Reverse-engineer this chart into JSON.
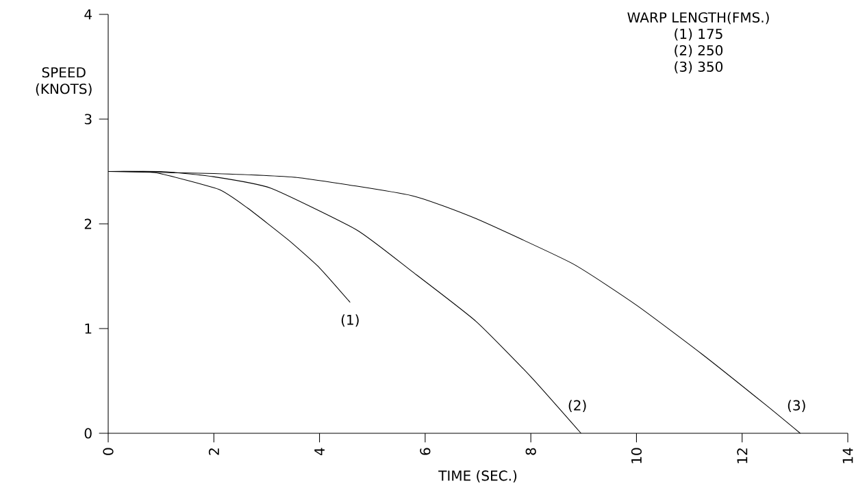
{
  "chart_data": {
    "type": "line",
    "xlabel": "TIME (SEC.)",
    "ylabel": "SPEED (KNOTS)",
    "legend_title": "WARP LENGTH(FMS.)",
    "annotations": [
      "(1) 175",
      "(2) 250",
      "(3) 350"
    ],
    "xlim": [
      0,
      14
    ],
    "xticks": [
      0,
      2,
      4,
      6,
      8,
      10,
      12,
      14
    ],
    "ylim": [
      0,
      4
    ],
    "yticks": [
      0,
      1,
      2,
      3,
      4
    ],
    "grid": false,
    "legend": false,
    "marker": "none",
    "line_style": "solid",
    "series": [
      {
        "name": "(1)",
        "color": "#000000",
        "x": [
          0,
          0.88,
          2.09,
          2.64,
          3.4,
          4.0,
          4.58
        ],
        "values": [
          2.5,
          2.49,
          2.33,
          2.15,
          1.85,
          1.58,
          1.25
        ]
      },
      {
        "name": "(2)",
        "color": "#000000",
        "x": [
          0,
          1.0,
          1.99,
          3.08,
          4.71,
          5.74,
          6.96,
          8.0,
          8.95
        ],
        "values": [
          2.5,
          2.5,
          2.45,
          2.34,
          1.94,
          1.55,
          1.07,
          0.54,
          0
        ]
      },
      {
        "name": "(3)",
        "color": "#000000",
        "x": [
          0,
          2.0,
          3.62,
          5.74,
          6.96,
          8.79,
          10.01,
          11.23,
          12.45,
          13.1
        ],
        "values": [
          2.5,
          2.48,
          2.44,
          2.27,
          2.05,
          1.62,
          1.22,
          0.76,
          0.27,
          0
        ]
      }
    ]
  }
}
